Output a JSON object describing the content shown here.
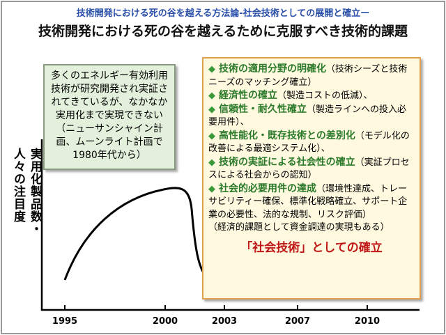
{
  "header": {
    "subtitle": "技術開発における死の谷を越える方法論-社会技術としての展開と確立ー",
    "title": "技術開発における死の谷を越えるために克服すべき技術的課題"
  },
  "axis": {
    "y_label_1": "実用化製品数・",
    "y_label_2": "人々の注目度",
    "years": [
      "1995",
      "2000",
      "2003",
      "2007",
      "2010"
    ]
  },
  "left_box": {
    "text": "多くのエネルギー有効利用技術が研究開発され実証されてきているが、なかなか実用化まで実現できない（ニューサンシャイン計画、ムーンライト計画で1980年代から）"
  },
  "right_box": {
    "items": [
      {
        "heading": "技術の適用分野の明確化",
        "note": "（技術シーズと技術ニーズのマッチング確立）"
      },
      {
        "heading": "経済性の確立",
        "note": "（製造コストの低減）、"
      },
      {
        "heading": "信頼性・耐久性確立",
        "note": "（製造ラインへの投入必要用件）、"
      },
      {
        "heading": "高性能化・既存技術との差別化",
        "note": "（モデル化の改善による最適システム化）、"
      },
      {
        "heading": "技術の実証による社会性の確立",
        "note": "（実証プロセスによる社会からの認知）"
      },
      {
        "heading": "社会的必要用件の達成",
        "note": "（環境性達成、トレーサビリティー確保、標準化戦略確立、サポート企業の必要性、法的な規制、リスク評価）"
      }
    ],
    "extra": "（経済的課題として資金調達の実現もある）",
    "conclusion": "「社会技術」としての確立"
  }
}
